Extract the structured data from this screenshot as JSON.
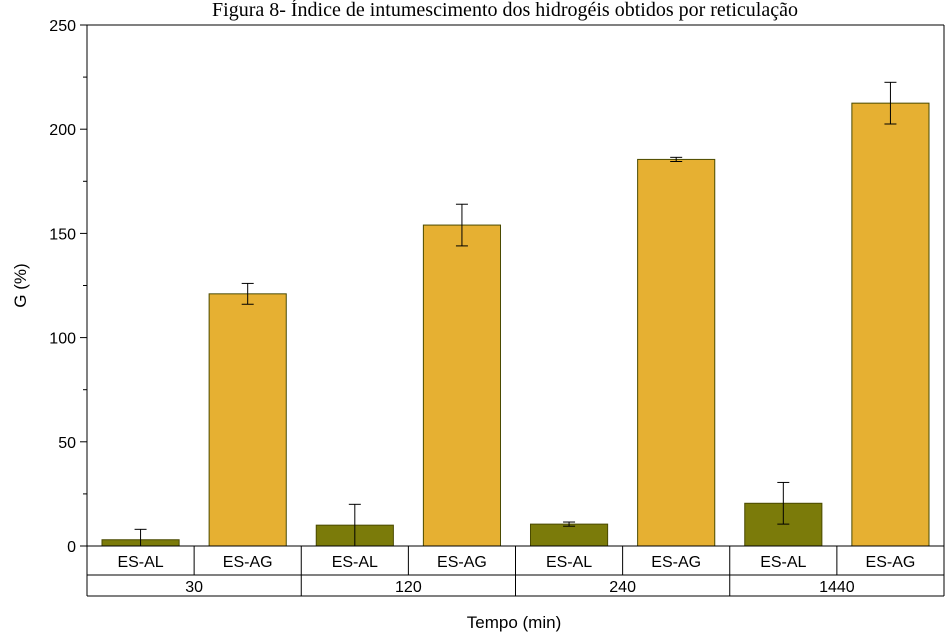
{
  "chart_data": {
    "type": "bar",
    "title": "Figura 8- Índice de intumescimento dos hidrogéis obtidos por reticulação",
    "xlabel": "Tempo (min)",
    "ylabel": "G (%)",
    "ylim": [
      0,
      250
    ],
    "yticks": [
      0,
      50,
      100,
      150,
      200,
      250
    ],
    "grid": false,
    "groups": [
      "30",
      "120",
      "240",
      "1440"
    ],
    "categories": [
      "ES-AL",
      "ES-AG",
      "ES-AL",
      "ES-AG",
      "ES-AL",
      "ES-AG",
      "ES-AL",
      "ES-AG"
    ],
    "bar_colors": {
      "ES-AL": "#7b7b0a",
      "ES-AG": "#e6b032"
    },
    "values": [
      3,
      121,
      10,
      154,
      10.5,
      185.5,
      20.5,
      212.5
    ],
    "errors": [
      5,
      5,
      10,
      10,
      1,
      1,
      10,
      10
    ]
  }
}
